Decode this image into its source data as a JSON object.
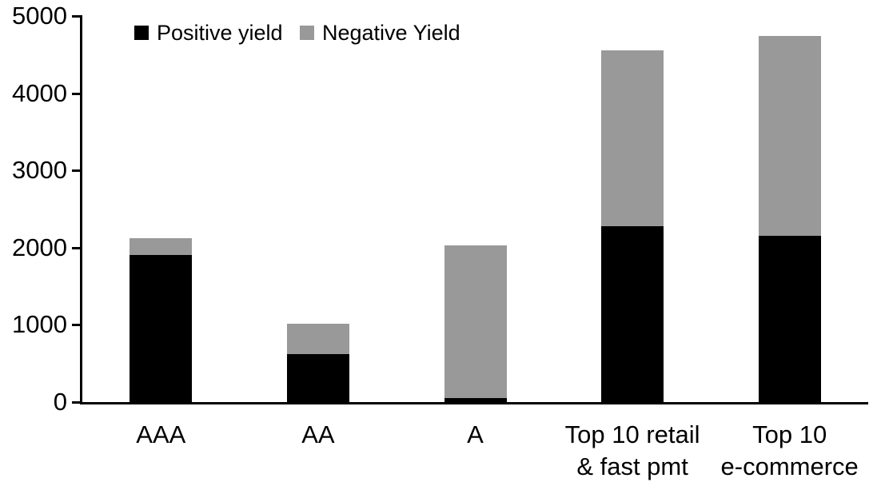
{
  "chart_data": {
    "type": "bar",
    "stacked": true,
    "title": "",
    "xlabel": "",
    "ylabel": "",
    "categories": [
      "AAA",
      "AA",
      "A",
      "Top 10 retail & fast pmt",
      "Top 10 e-commerce"
    ],
    "category_label_lines": [
      [
        "AAA"
      ],
      [
        "AA"
      ],
      [
        "A"
      ],
      [
        "Top 10 retail",
        "& fast pmt"
      ],
      [
        "Top 10",
        "e-commerce"
      ]
    ],
    "series": [
      {
        "name": "Positive yield",
        "color": "#000000",
        "values": [
          1900,
          620,
          50,
          2280,
          2150
        ]
      },
      {
        "name": "Negative Yield",
        "color": "#999999",
        "values": [
          220,
          390,
          1980,
          2270,
          2590
        ]
      }
    ],
    "ylim": [
      0,
      5000
    ],
    "yticks": [
      0,
      1000,
      2000,
      3000,
      4000,
      5000
    ],
    "grid": false,
    "legend_position": "top-left",
    "axis_color": "#000000",
    "background_color": "#ffffff"
  }
}
